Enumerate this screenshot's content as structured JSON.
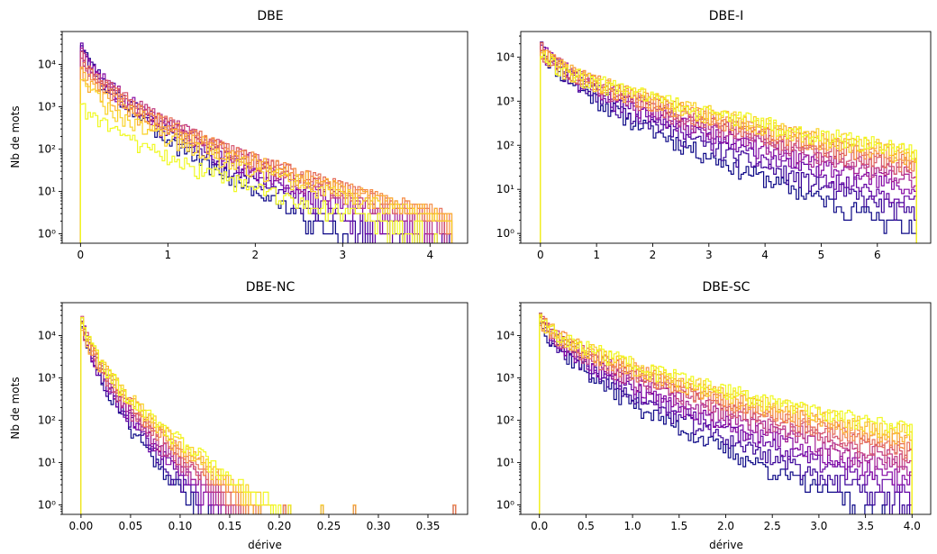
{
  "figure": {
    "colormap": "plasma"
  },
  "chart_data": [
    {
      "type": "histogram",
      "title": "DBE",
      "xlabel": "",
      "ylabel": "Nb de mots",
      "yscale": "log",
      "xlim": [
        -0.21,
        4.43
      ],
      "ylim": [
        0.6,
        60000
      ],
      "xticks": [
        0,
        1,
        2,
        3,
        4
      ],
      "xtick_labels": [
        "0",
        "1",
        "2",
        "3",
        "4"
      ],
      "yticks": [
        1,
        10,
        100,
        1000,
        10000
      ],
      "ytick_labels": [
        "10⁰",
        "10¹",
        "10²",
        "10³",
        "10⁴"
      ],
      "n_series": 12,
      "x_max": 4.25,
      "peak_counts": [
        40000,
        1500
      ],
      "decay_scale": 0.22,
      "decay_growth": 0.028,
      "tail_start": 0.75,
      "tail_density": 0.52,
      "sparse_points": [
        1.36,
        1.42,
        1.6,
        1.72,
        1.9,
        2.0,
        2.12,
        2.5,
        2.88,
        3.19,
        3.45,
        3.66,
        3.86,
        4.07,
        4.15,
        4.22
      ],
      "seed": 3
    },
    {
      "type": "histogram",
      "title": "DBE-I",
      "xlabel": "",
      "ylabel": "",
      "yscale": "log",
      "xlim": [
        -0.35,
        6.95
      ],
      "ylim": [
        0.6,
        38000
      ],
      "xticks": [
        0,
        1,
        2,
        3,
        4,
        5,
        6
      ],
      "xtick_labels": [
        "0",
        "1",
        "2",
        "3",
        "4",
        "5",
        "6"
      ],
      "yticks": [
        1,
        10,
        100,
        1000,
        10000
      ],
      "ytick_labels": [
        "10⁰",
        "10¹",
        "10²",
        "10³",
        "10⁴"
      ],
      "n_series": 12,
      "x_max": 6.7,
      "peak_counts": [
        24000,
        14000
      ],
      "decay_scale": 0.55,
      "decay_growth": 0.09,
      "tail_start": 2.2,
      "tail_density": 0.5,
      "sparse_points": [
        4.9,
        5.45,
        6.2,
        6.3,
        6.38,
        6.45,
        6.52,
        6.6,
        6.66
      ],
      "seed": 11
    },
    {
      "type": "histogram",
      "title": "DBE-NC",
      "xlabel": "dérive",
      "ylabel": "Nb de mots",
      "yscale": "log",
      "xlim": [
        -0.019,
        0.39
      ],
      "ylim": [
        0.6,
        60000
      ],
      "xticks": [
        0,
        0.05,
        0.1,
        0.15,
        0.2,
        0.25,
        0.3,
        0.35
      ],
      "xtick_labels": [
        "0.00",
        "0.05",
        "0.10",
        "0.15",
        "0.20",
        "0.25",
        "0.30",
        "0.35"
      ],
      "yticks": [
        1,
        10,
        100,
        1000,
        10000
      ],
      "ytick_labels": [
        "10⁰",
        "10¹",
        "10²",
        "10³",
        "10⁴"
      ],
      "n_series": 12,
      "x_max": 0.378,
      "peak_counts": [
        40000,
        30000
      ],
      "decay_scale": 0.0085,
      "decay_growth": 0.0006,
      "tail_start": 0.055,
      "tail_density": 0.5,
      "sparse_points": [
        0.13,
        0.145,
        0.16,
        0.18,
        0.205,
        0.21,
        0.244,
        0.275,
        0.378
      ],
      "seed": 21
    },
    {
      "type": "histogram",
      "title": "DBE-SC",
      "xlabel": "dérive",
      "ylabel": "",
      "yscale": "log",
      "xlim": [
        -0.2,
        4.2
      ],
      "ylim": [
        0.6,
        60000
      ],
      "xticks": [
        0,
        0.5,
        1,
        1.5,
        2,
        2.5,
        3,
        3.5,
        4
      ],
      "xtick_labels": [
        "0.0",
        "0.5",
        "1.0",
        "1.5",
        "2.0",
        "2.5",
        "3.0",
        "3.5",
        "4.0"
      ],
      "yticks": [
        1,
        10,
        100,
        1000,
        10000
      ],
      "ytick_labels": [
        "10⁰",
        "10¹",
        "10²",
        "10³",
        "10⁴"
      ],
      "n_series": 12,
      "x_max": 4.0,
      "peak_counts": [
        35000,
        30000
      ],
      "decay_scale": 0.26,
      "decay_growth": 0.04,
      "tail_start": 1.3,
      "tail_density": 0.45,
      "sparse_points": [
        2.55,
        2.7,
        2.82,
        2.95,
        3.1,
        3.25,
        3.48,
        3.55,
        3.7,
        3.88,
        3.98
      ],
      "seed": 37
    }
  ]
}
